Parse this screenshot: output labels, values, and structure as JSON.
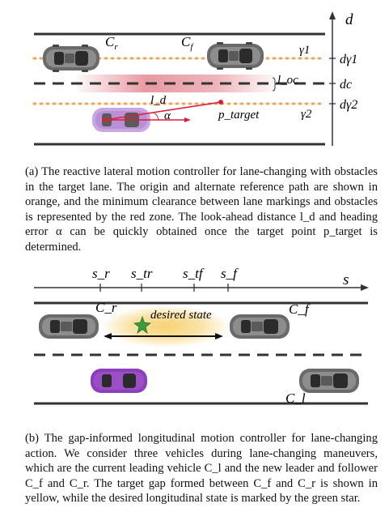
{
  "figure_a": {
    "vehicle_labels": {
      "rear": "C",
      "rear_sub": "r",
      "front": "C",
      "front_sub": "f"
    },
    "lane_labels": {
      "gamma1": "γ1",
      "gamma2": "γ2"
    },
    "axis": {
      "d": "d",
      "d_gamma1": "dγ1",
      "d_c": "dc",
      "d_gamma2": "dγ2"
    },
    "l_oc": "l_oc",
    "l_d": "l_d",
    "alpha": "α",
    "p_target": "p_target",
    "caption": "(a) The reactive lateral motion controller for lane-changing with obstacles in the target lane. The origin and alternate reference path are shown in orange, and the minimum clearance between lane markings and obstacles is represented by the red zone. The look-ahead distance l_d and heading error α can be quickly obtained once the target point p_target is determined."
  },
  "figure_b": {
    "s_ticks": [
      "s_r",
      "s_tr",
      "s_tf",
      "s_f"
    ],
    "s_axis": "s",
    "vehicle_labels": {
      "rear": "C_r",
      "front": "C_f",
      "leader": "C_l"
    },
    "desired_state": "desired state",
    "caption": "(b) The gap-informed longitudinal motion controller for lane-changing action. We consider three vehicles during lane-changing maneuvers, which are the current leading vehicle C_l and the new leader and follower C_f and C_r. The target gap formed between C_f and C_r is shown in yellow, while the desired longitudinal state is marked by the green star."
  },
  "colors": {
    "orange_path": "#f2a35e",
    "red_zone": "#e07883",
    "target_red": "#d8203a",
    "gap_yellow": "#f7cf6a",
    "star_green": "#3a9d3a",
    "ego_purple": "#9b4fc4",
    "car_gray": "#777777"
  }
}
